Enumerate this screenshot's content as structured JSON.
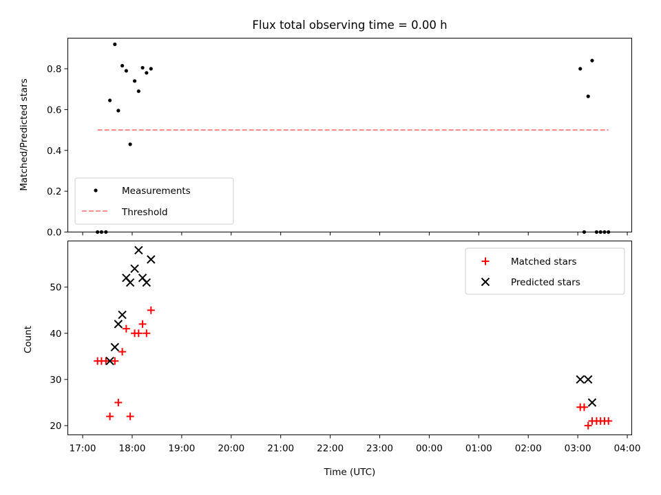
{
  "chart_data": {
    "type": "scatter",
    "title": "Flux total observing time = 0.00 h",
    "xlabel": "Time (UTC)",
    "x_tick_labels": [
      "17:00",
      "18:00",
      "19:00",
      "20:00",
      "21:00",
      "22:00",
      "23:00",
      "00:00",
      "01:00",
      "02:00",
      "03:00",
      "04:00"
    ],
    "top_panel": {
      "ylabel": "Matched/Predicted stars",
      "ylim": [
        0,
        0.95
      ],
      "y_ticks": [
        "0.0",
        "0.2",
        "0.4",
        "0.6",
        "0.8"
      ],
      "legend_position": "lower-left",
      "series": [
        {
          "name": "Measurements",
          "marker": "dot",
          "color": "#000000",
          "points": [
            [
              17.3,
              0.0
            ],
            [
              17.38,
              0.0
            ],
            [
              17.47,
              0.0
            ],
            [
              17.55,
              0.645
            ],
            [
              17.65,
              0.92
            ],
            [
              17.72,
              0.595
            ],
            [
              17.8,
              0.815
            ],
            [
              17.88,
              0.79
            ],
            [
              17.96,
              0.43
            ],
            [
              18.05,
              0.74
            ],
            [
              18.13,
              0.69
            ],
            [
              18.21,
              0.805
            ],
            [
              18.29,
              0.78
            ],
            [
              18.38,
              0.8
            ],
            [
              27.05,
              0.8
            ],
            [
              27.13,
              0.0
            ],
            [
              27.21,
              0.665
            ],
            [
              27.29,
              0.84
            ],
            [
              27.38,
              0.0
            ],
            [
              27.46,
              0.0
            ],
            [
              27.54,
              0.0
            ],
            [
              27.62,
              0.0
            ]
          ]
        },
        {
          "name": "Threshold",
          "style": "dashed",
          "color": "#ff7f7f",
          "x_range": [
            17.3,
            27.62
          ],
          "value": 0.5
        }
      ]
    },
    "bottom_panel": {
      "ylabel": "Count",
      "ylim": [
        18,
        60
      ],
      "y_ticks": [
        "20",
        "30",
        "40",
        "50"
      ],
      "legend_position": "upper-right",
      "series": [
        {
          "name": "Matched stars",
          "marker": "plus",
          "color": "#ff0000",
          "points": [
            [
              17.3,
              34
            ],
            [
              17.38,
              34
            ],
            [
              17.47,
              34
            ],
            [
              17.55,
              22
            ],
            [
              17.65,
              34
            ],
            [
              17.72,
              25
            ],
            [
              17.8,
              36
            ],
            [
              17.88,
              41
            ],
            [
              17.96,
              22
            ],
            [
              18.05,
              40
            ],
            [
              18.13,
              40
            ],
            [
              18.21,
              42
            ],
            [
              18.29,
              40
            ],
            [
              18.38,
              45
            ],
            [
              27.05,
              24
            ],
            [
              27.13,
              24
            ],
            [
              27.21,
              20
            ],
            [
              27.29,
              21
            ],
            [
              27.38,
              21
            ],
            [
              27.46,
              21
            ],
            [
              27.54,
              21
            ],
            [
              27.62,
              21
            ]
          ]
        },
        {
          "name": "Predicted stars",
          "marker": "x",
          "color": "#000000",
          "points": [
            [
              17.55,
              34
            ],
            [
              17.65,
              37
            ],
            [
              17.72,
              42
            ],
            [
              17.8,
              44
            ],
            [
              17.88,
              52
            ],
            [
              17.96,
              51
            ],
            [
              18.05,
              54
            ],
            [
              18.13,
              58
            ],
            [
              18.21,
              52
            ],
            [
              18.29,
              51
            ],
            [
              18.38,
              56
            ],
            [
              27.05,
              30
            ],
            [
              27.21,
              30
            ],
            [
              27.29,
              25
            ]
          ]
        }
      ]
    }
  }
}
